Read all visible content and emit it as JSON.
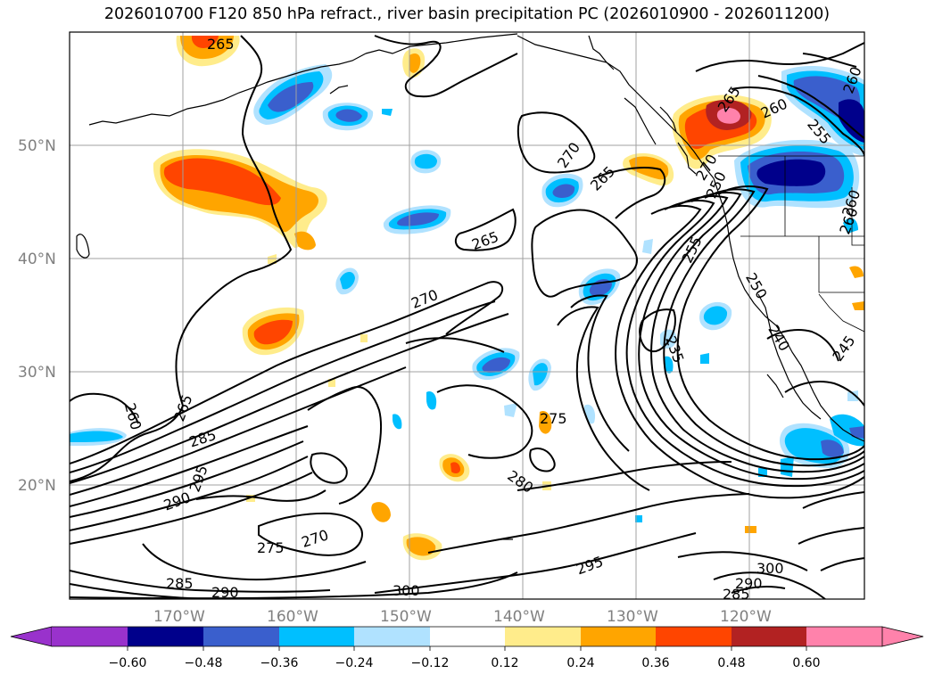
{
  "title": "2026010700 F120 850 hPa refract., river basin precipitation PC (2026010900 - 2026011200)",
  "lat_labels": [
    "50°N",
    "40°N",
    "30°N",
    "20°N"
  ],
  "lon_labels": [
    "170°W",
    "160°W",
    "150°W",
    "140°W",
    "130°W",
    "120°W"
  ],
  "contour_labels": [
    "265",
    "265",
    "270",
    "265",
    "270",
    "265",
    "260",
    "255",
    "260",
    "260",
    "250",
    "255",
    "240",
    "245",
    "235",
    "270",
    "265",
    "260",
    "285",
    "295",
    "290",
    "275",
    "270",
    "275",
    "280",
    "285",
    "290",
    "300",
    "295",
    "300",
    "290",
    "285",
    "250",
    "260"
  ],
  "colorbar": {
    "colors": [
      "#9932cc",
      "#00008b",
      "#3a5fcd",
      "#00bfff",
      "#b0e2ff",
      "#ffffff",
      "#ffec8b",
      "#ffa500",
      "#ff4500",
      "#b22222",
      "#ff82ab"
    ],
    "tick_labels": [
      "−0.60",
      "−0.48",
      "−0.36",
      "−0.24",
      "−0.12",
      "0.12",
      "0.24",
      "0.36",
      "0.48",
      "0.60"
    ]
  },
  "colors": {
    "grid": "#a0a0a0",
    "contour": "#000000",
    "coast": "#000000",
    "frame": "#000000"
  }
}
